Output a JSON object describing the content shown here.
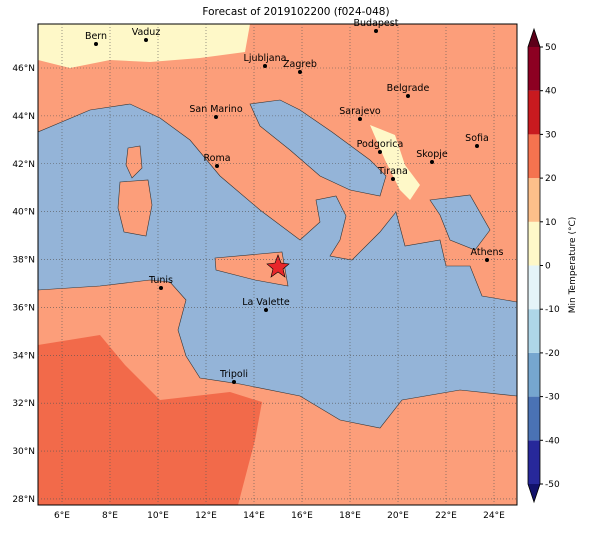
{
  "title": "Forecast of 2019102200 (f024-048)",
  "map": {
    "lon_ticks": [
      {
        "value": 6,
        "label": "6°E"
      },
      {
        "value": 8,
        "label": "8°E"
      },
      {
        "value": 10,
        "label": "10°E"
      },
      {
        "value": 12,
        "label": "12°E"
      },
      {
        "value": 14,
        "label": "14°E"
      },
      {
        "value": 16,
        "label": "16°E"
      },
      {
        "value": 18,
        "label": "18°E"
      },
      {
        "value": 20,
        "label": "20°E"
      },
      {
        "value": 22,
        "label": "22°E"
      },
      {
        "value": 24,
        "label": "24°E"
      }
    ],
    "lat_ticks": [
      {
        "value": 46,
        "label": "46°N"
      },
      {
        "value": 44,
        "label": "44°N"
      },
      {
        "value": 42,
        "label": "42°N"
      },
      {
        "value": 40,
        "label": "40°N"
      },
      {
        "value": 38,
        "label": "38°N"
      },
      {
        "value": 36,
        "label": "36°N"
      },
      {
        "value": 34,
        "label": "34°N"
      },
      {
        "value": 32,
        "label": "32°N"
      },
      {
        "value": 30,
        "label": "30°N"
      },
      {
        "value": 28,
        "label": "28°N"
      }
    ],
    "cities": [
      "Bern",
      "Vaduz",
      "Budapest",
      "Ljubljana",
      "Zagreb",
      "Belgrade",
      "San Marino",
      "Sarajevo",
      "Sofia",
      "Podgorica",
      "Skopje",
      "Roma",
      "Tirana",
      "Athens",
      "Tunis",
      "La Valette",
      "Tripoli"
    ]
  },
  "colorbar": {
    "label": "Min Temperature (°C)",
    "ticks": [
      -50,
      -40,
      -30,
      -20,
      -10,
      0,
      10,
      20,
      30,
      40,
      50
    ],
    "colors": [
      "#27289a",
      "#4a72b4",
      "#76a6cf",
      "#aed6e8",
      "#e4f4f8",
      "#fef8c8",
      "#fdbf8a",
      "#f5734f",
      "#c81a1f",
      "#8c0022"
    ],
    "extend_colors": [
      "#12126b",
      "#5c0019"
    ]
  }
}
